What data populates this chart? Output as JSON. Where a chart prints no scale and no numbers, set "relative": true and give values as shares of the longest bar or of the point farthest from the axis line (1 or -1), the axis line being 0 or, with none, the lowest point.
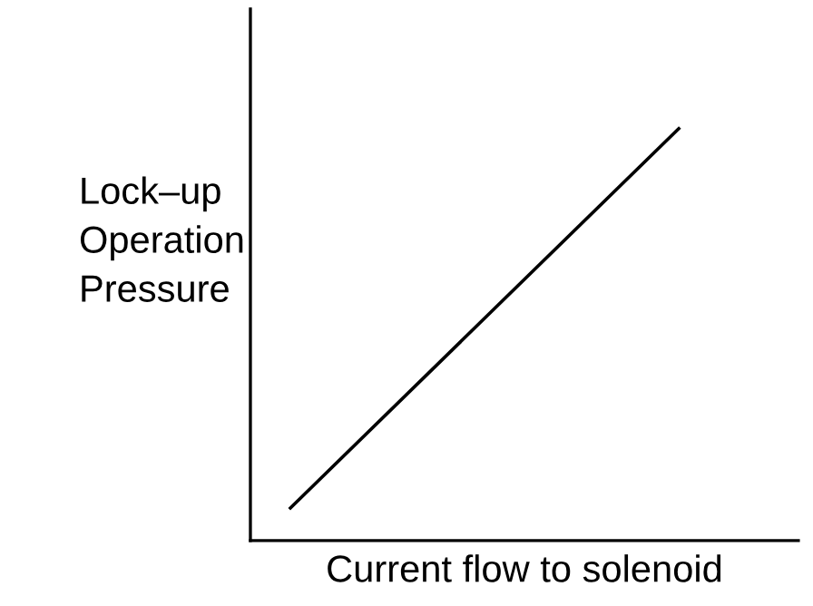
{
  "chart_data": {
    "type": "line",
    "relative": true,
    "xlabel": "Current flow to solenoid",
    "ylabel": "Lock–up\nOperation\nPressure",
    "categories": [
      null,
      null
    ],
    "series": [
      {
        "color": "#000000",
        "values": [
          0.079,
          1
        ]
      }
    ],
    "marker": "none",
    "grid": false,
    "legend": false
  }
}
